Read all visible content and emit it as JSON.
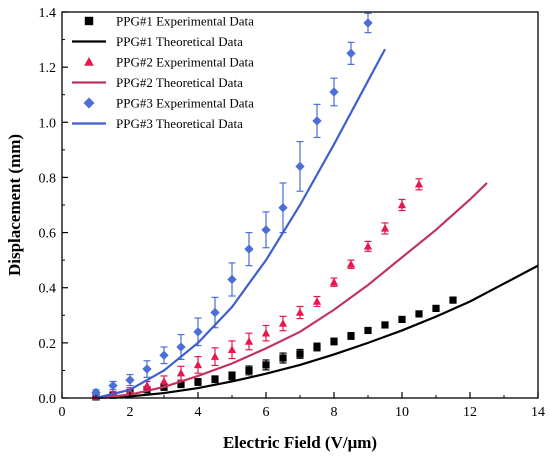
{
  "chart_data": {
    "type": "scatter",
    "title": "",
    "xlabel": "Electric Field (V/μm)",
    "ylabel": "Displacement (mm)",
    "xlim": [
      0,
      14
    ],
    "ylim": [
      0,
      1.4
    ],
    "x_ticks": [
      "0",
      "2",
      "4",
      "6",
      "8",
      "10",
      "12",
      "14"
    ],
    "y_ticks": [
      "0.0",
      "0.2",
      "0.4",
      "0.6",
      "0.8",
      "1.0",
      "1.2",
      "1.4"
    ],
    "legend_position": "top-left",
    "grid": false,
    "colors": {
      "ppg1": "#000000",
      "ppg2": "#e8184e",
      "ppg2_line": "#c0355e",
      "ppg3": "#4a6fd6",
      "ppg3_line": "#3f5fd0"
    },
    "series": [
      {
        "name": "PPG#1 Experimental Data",
        "kind": "scatter",
        "marker": "square",
        "color": "#000000",
        "x": [
          1.0,
          1.5,
          2.0,
          2.5,
          3.0,
          3.5,
          4.0,
          4.5,
          5.0,
          5.5,
          6.0,
          6.5,
          7.0,
          7.5,
          8.0,
          8.5,
          9.0,
          9.5,
          10.0,
          10.5,
          11.0,
          11.5
        ],
        "y": [
          0.004,
          0.01,
          0.02,
          0.03,
          0.04,
          0.05,
          0.058,
          0.068,
          0.08,
          0.1,
          0.12,
          0.145,
          0.16,
          0.185,
          0.205,
          0.225,
          0.245,
          0.265,
          0.285,
          0.305,
          0.325,
          0.355
        ],
        "err": [
          0.005,
          0.006,
          0.008,
          0.01,
          0.012,
          0.012,
          0.012,
          0.012,
          0.014,
          0.016,
          0.018,
          0.018,
          0.016,
          0.014,
          0.012,
          0.012,
          0.01,
          0.01,
          0.01,
          0.01,
          0.01,
          0.01
        ]
      },
      {
        "name": "PPG#1 Theoretical Data",
        "kind": "line",
        "color": "#000000",
        "x": [
          1.0,
          2.0,
          3.0,
          4.0,
          5.0,
          6.0,
          7.0,
          8.0,
          9.0,
          10.0,
          11.0,
          12.0,
          13.0,
          14.0
        ],
        "y": [
          0.0,
          0.006,
          0.018,
          0.036,
          0.06,
          0.088,
          0.12,
          0.158,
          0.2,
          0.245,
          0.295,
          0.35,
          0.415,
          0.48
        ]
      },
      {
        "name": "PPG#2 Experimental Data",
        "kind": "scatter",
        "marker": "triangle",
        "color": "#e8184e",
        "x": [
          1.0,
          1.5,
          2.0,
          2.5,
          3.0,
          3.5,
          4.0,
          4.5,
          5.0,
          5.5,
          6.0,
          6.5,
          7.0,
          7.5,
          8.0,
          8.5,
          9.0,
          9.5,
          10.0,
          10.5
        ],
        "y": [
          0.005,
          0.015,
          0.025,
          0.045,
          0.06,
          0.09,
          0.12,
          0.15,
          0.175,
          0.205,
          0.235,
          0.27,
          0.31,
          0.35,
          0.42,
          0.485,
          0.55,
          0.615,
          0.7,
          0.775
        ],
        "err": [
          0.005,
          0.008,
          0.012,
          0.015,
          0.02,
          0.025,
          0.03,
          0.032,
          0.032,
          0.03,
          0.028,
          0.026,
          0.022,
          0.018,
          0.015,
          0.015,
          0.018,
          0.02,
          0.02,
          0.02
        ]
      },
      {
        "name": "PPG#2 Theoretical Data",
        "kind": "line",
        "color": "#c0355e",
        "x": [
          1.0,
          2.0,
          3.0,
          4.0,
          5.0,
          6.0,
          7.0,
          8.0,
          9.0,
          10.0,
          11.0,
          12.0,
          12.5
        ],
        "y": [
          0.0,
          0.012,
          0.04,
          0.08,
          0.125,
          0.18,
          0.24,
          0.32,
          0.41,
          0.51,
          0.61,
          0.72,
          0.78
        ]
      },
      {
        "name": "PPG#3 Experimental Data",
        "kind": "scatter",
        "marker": "diamond",
        "color": "#4a6fd6",
        "x": [
          1.0,
          1.5,
          2.0,
          2.5,
          3.0,
          3.5,
          4.0,
          4.5,
          5.0,
          5.5,
          6.0,
          6.5,
          7.0,
          7.5,
          8.0,
          8.5,
          9.0
        ],
        "y": [
          0.02,
          0.045,
          0.065,
          0.105,
          0.155,
          0.185,
          0.24,
          0.31,
          0.43,
          0.54,
          0.61,
          0.69,
          0.84,
          1.005,
          1.11,
          1.25,
          1.36
        ],
        "err": [
          0.01,
          0.015,
          0.02,
          0.03,
          0.03,
          0.045,
          0.05,
          0.055,
          0.06,
          0.06,
          0.065,
          0.09,
          0.09,
          0.06,
          0.05,
          0.04,
          0.035
        ]
      },
      {
        "name": "PPG#3 Theoretical Data",
        "kind": "line",
        "color": "#3f5fd0",
        "x": [
          1.0,
          2.0,
          3.0,
          4.0,
          5.0,
          6.0,
          7.0,
          8.0,
          9.0,
          9.5
        ],
        "y": [
          0.0,
          0.03,
          0.1,
          0.2,
          0.33,
          0.5,
          0.7,
          0.92,
          1.15,
          1.265
        ]
      }
    ]
  }
}
